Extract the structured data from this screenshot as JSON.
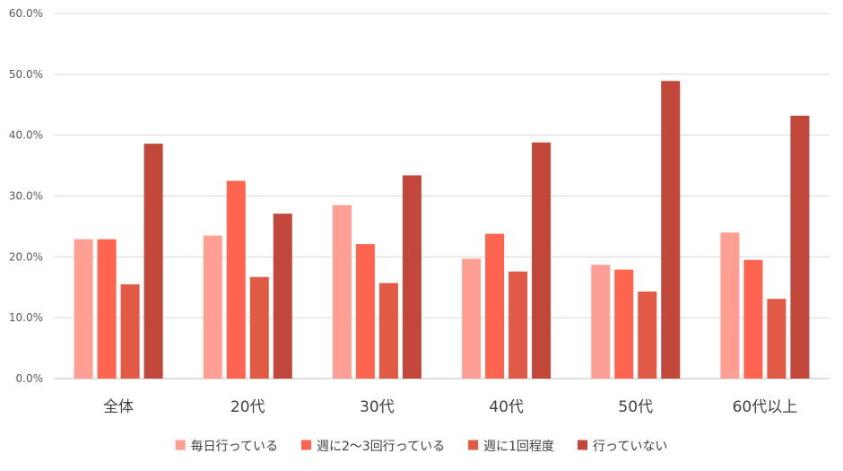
{
  "chart_data": {
    "type": "bar",
    "title": "",
    "xlabel": "",
    "ylabel": "",
    "ylim": [
      0,
      60
    ],
    "y_ticks": [
      0,
      10,
      20,
      30,
      40,
      50,
      60
    ],
    "y_tick_format": "percent_1dp",
    "y_tick_labels": [
      "0.0%",
      "10.0%",
      "20.0%",
      "30.0%",
      "40.0%",
      "50.0%",
      "60.0%"
    ],
    "grid": true,
    "legend_position": "bottom",
    "categories": [
      "全体",
      "20代",
      "30代",
      "40代",
      "50代",
      "60代以上"
    ],
    "series": [
      {
        "name": "毎日行っている",
        "color": "#ff9f94",
        "values": [
          22.9,
          23.5,
          28.5,
          19.7,
          18.7,
          24.0
        ]
      },
      {
        "name": "週に2〜3回行っている",
        "color": "#ff6450",
        "values": [
          22.9,
          32.5,
          22.1,
          23.8,
          17.9,
          19.5
        ]
      },
      {
        "name": "週に1回程度",
        "color": "#e05a45",
        "values": [
          15.5,
          16.7,
          15.7,
          17.6,
          14.3,
          13.1
        ]
      },
      {
        "name": "行っていない",
        "color": "#c0473a",
        "values": [
          38.6,
          27.1,
          33.4,
          38.8,
          48.9,
          43.2
        ]
      }
    ]
  }
}
